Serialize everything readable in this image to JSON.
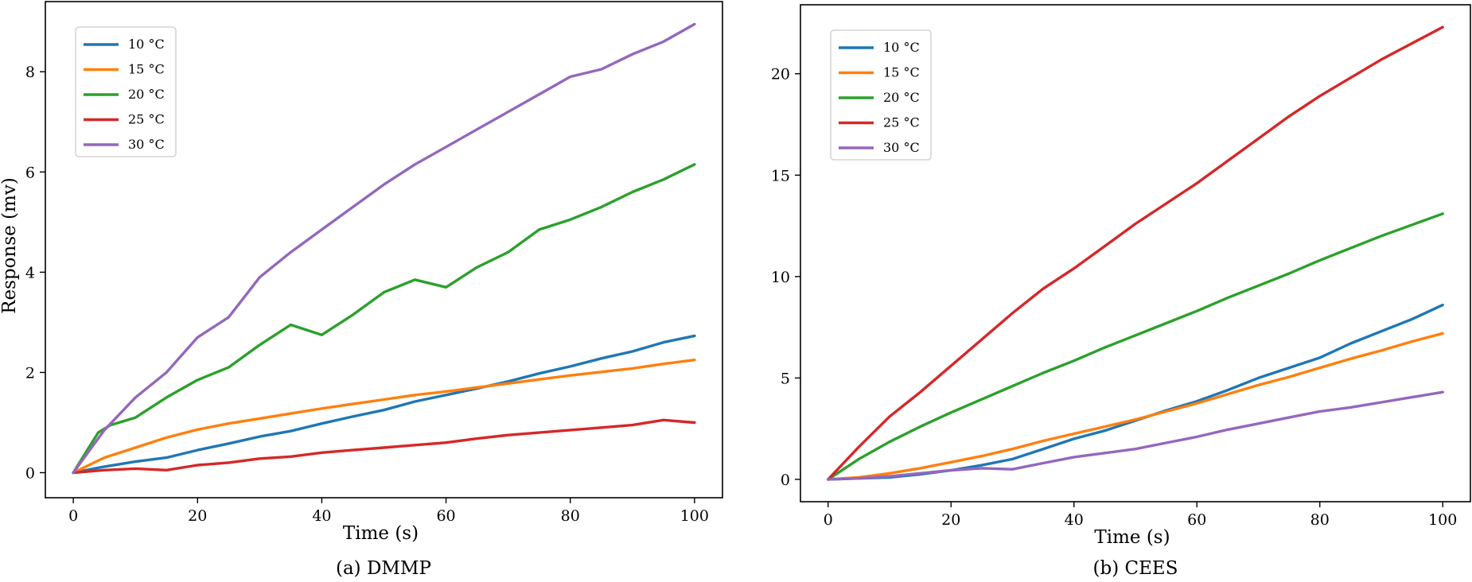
{
  "chart_data": [
    {
      "type": "line",
      "caption": "(a) DMMP",
      "xlabel": "Time (s)",
      "ylabel": "Response (mv)",
      "xlim": [
        -4.5,
        104.5
      ],
      "ylim": [
        -0.5,
        9.4
      ],
      "xticks": [
        0,
        20,
        40,
        60,
        80,
        100
      ],
      "yticks": [
        0,
        2,
        4,
        6,
        8
      ],
      "legend_position": "top-left",
      "grid": false,
      "series": [
        {
          "name": "10 °C",
          "color": "#1f77b4",
          "x": [
            0,
            5,
            10,
            15,
            20,
            25,
            30,
            35,
            40,
            45,
            50,
            55,
            60,
            65,
            70,
            75,
            80,
            85,
            90,
            95,
            100
          ],
          "y": [
            0,
            0.12,
            0.22,
            0.3,
            0.45,
            0.58,
            0.72,
            0.83,
            0.98,
            1.12,
            1.25,
            1.42,
            1.55,
            1.68,
            1.82,
            1.98,
            2.12,
            2.28,
            2.42,
            2.6,
            2.73
          ]
        },
        {
          "name": "15 °C",
          "color": "#ff7f0e",
          "x": [
            0,
            5,
            10,
            15,
            20,
            25,
            30,
            35,
            40,
            45,
            50,
            55,
            60,
            65,
            70,
            75,
            80,
            85,
            90,
            95,
            100
          ],
          "y": [
            0,
            0.3,
            0.5,
            0.7,
            0.86,
            0.98,
            1.08,
            1.18,
            1.28,
            1.37,
            1.46,
            1.55,
            1.62,
            1.7,
            1.78,
            1.86,
            1.94,
            2.01,
            2.08,
            2.17,
            2.25
          ]
        },
        {
          "name": "20 °C",
          "color": "#2ca02c",
          "x": [
            0,
            2,
            4,
            6,
            10,
            15,
            20,
            25,
            30,
            35,
            40,
            45,
            50,
            55,
            60,
            65,
            70,
            75,
            80,
            85,
            90,
            95,
            100
          ],
          "y": [
            0,
            0.4,
            0.8,
            0.95,
            1.1,
            1.5,
            1.85,
            2.1,
            2.55,
            2.95,
            2.75,
            3.15,
            3.6,
            3.85,
            3.7,
            4.1,
            4.4,
            4.85,
            5.05,
            5.3,
            5.6,
            5.85,
            6.15
          ]
        },
        {
          "name": "25 °C",
          "color": "#d62728",
          "x": [
            0,
            5,
            10,
            15,
            20,
            25,
            30,
            35,
            40,
            45,
            50,
            55,
            60,
            65,
            70,
            75,
            80,
            85,
            90,
            95,
            100
          ],
          "y": [
            0,
            0.05,
            0.08,
            0.05,
            0.15,
            0.2,
            0.28,
            0.32,
            0.4,
            0.45,
            0.5,
            0.55,
            0.6,
            0.68,
            0.75,
            0.8,
            0.85,
            0.9,
            0.95,
            1.05,
            1.0
          ]
        },
        {
          "name": "30 °C",
          "color": "#9467bd",
          "x": [
            0,
            5,
            10,
            15,
            20,
            25,
            30,
            35,
            40,
            45,
            50,
            55,
            60,
            65,
            70,
            75,
            80,
            85,
            90,
            95,
            100
          ],
          "y": [
            0,
            0.85,
            1.5,
            2.0,
            2.7,
            3.1,
            3.9,
            4.4,
            4.85,
            5.3,
            5.75,
            6.15,
            6.5,
            6.85,
            7.2,
            7.55,
            7.9,
            8.05,
            8.35,
            8.6,
            8.95
          ]
        }
      ]
    },
    {
      "type": "line",
      "caption": "(b) CEES",
      "xlabel": "Time (s)",
      "ylabel": "",
      "xlim": [
        -4.5,
        104.5
      ],
      "ylim": [
        -1.1,
        23.4
      ],
      "xticks": [
        0,
        20,
        40,
        60,
        80,
        100
      ],
      "yticks": [
        0,
        5,
        10,
        15,
        20
      ],
      "legend_position": "top-left",
      "grid": false,
      "series": [
        {
          "name": "10 °C",
          "color": "#1f77b4",
          "x": [
            0,
            5,
            10,
            15,
            20,
            25,
            30,
            35,
            40,
            45,
            50,
            55,
            60,
            65,
            70,
            75,
            80,
            85,
            90,
            95,
            100
          ],
          "y": [
            0,
            0.05,
            0.1,
            0.25,
            0.45,
            0.7,
            1.0,
            1.5,
            2.0,
            2.4,
            2.9,
            3.4,
            3.85,
            4.4,
            5.0,
            5.5,
            6.0,
            6.7,
            7.3,
            7.9,
            8.6
          ]
        },
        {
          "name": "15 °C",
          "color": "#ff7f0e",
          "x": [
            0,
            5,
            10,
            15,
            20,
            25,
            30,
            35,
            40,
            45,
            50,
            55,
            60,
            65,
            70,
            75,
            80,
            85,
            90,
            95,
            100
          ],
          "y": [
            0,
            0.1,
            0.3,
            0.55,
            0.85,
            1.15,
            1.5,
            1.9,
            2.25,
            2.6,
            2.95,
            3.35,
            3.75,
            4.2,
            4.65,
            5.05,
            5.5,
            5.95,
            6.35,
            6.8,
            7.2
          ]
        },
        {
          "name": "20 °C",
          "color": "#2ca02c",
          "x": [
            0,
            5,
            10,
            15,
            20,
            25,
            30,
            35,
            40,
            45,
            50,
            55,
            60,
            65,
            70,
            75,
            80,
            85,
            90,
            95,
            100
          ],
          "y": [
            0,
            1.0,
            1.85,
            2.6,
            3.3,
            3.95,
            4.6,
            5.25,
            5.85,
            6.5,
            7.1,
            7.7,
            8.3,
            8.95,
            9.55,
            10.15,
            10.8,
            11.4,
            12.0,
            12.55,
            13.1
          ]
        },
        {
          "name": "25 °C",
          "color": "#d62728",
          "x": [
            0,
            5,
            10,
            15,
            20,
            25,
            30,
            35,
            40,
            45,
            50,
            55,
            60,
            65,
            70,
            75,
            80,
            85,
            90,
            95,
            100
          ],
          "y": [
            0,
            1.6,
            3.1,
            4.3,
            5.6,
            6.9,
            8.2,
            9.4,
            10.4,
            11.5,
            12.6,
            13.6,
            14.6,
            15.7,
            16.8,
            17.9,
            18.9,
            19.8,
            20.7,
            21.5,
            22.3
          ]
        },
        {
          "name": "30 °C",
          "color": "#9467bd",
          "x": [
            0,
            5,
            10,
            15,
            20,
            25,
            30,
            35,
            40,
            45,
            50,
            55,
            60,
            65,
            70,
            75,
            80,
            85,
            90,
            95,
            100
          ],
          "y": [
            0,
            0.05,
            0.15,
            0.3,
            0.45,
            0.55,
            0.5,
            0.8,
            1.1,
            1.3,
            1.5,
            1.8,
            2.1,
            2.45,
            2.75,
            3.05,
            3.35,
            3.55,
            3.8,
            4.05,
            4.3
          ]
        }
      ]
    }
  ]
}
